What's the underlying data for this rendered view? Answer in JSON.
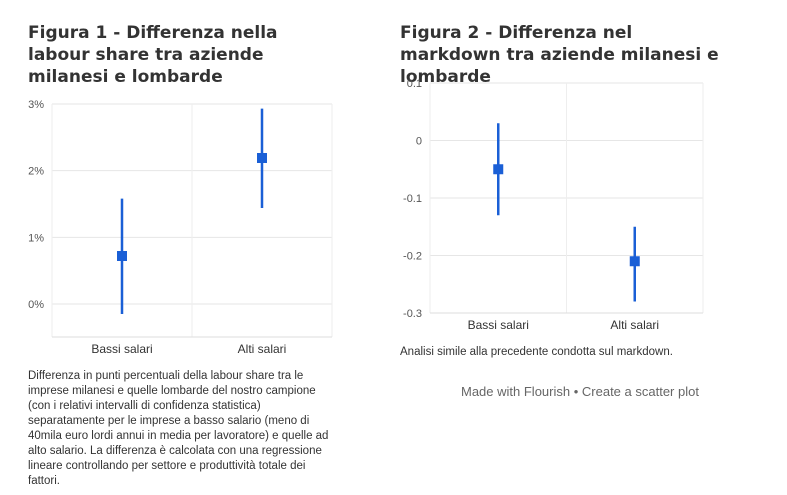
{
  "chart_data": [
    {
      "type": "scatter",
      "title": "Figura 1 - Differenza nella labour share tra aziende milanesi e lombarde",
      "categories": [
        "Bassi salari",
        "Alti salari"
      ],
      "values": [
        0.72,
        2.19
      ],
      "error_low": [
        -0.15,
        1.44
      ],
      "error_high": [
        1.58,
        2.93
      ],
      "yticks": [
        0,
        1,
        2,
        3
      ],
      "ytick_labels": [
        "0%",
        "1%",
        "2%",
        "3%"
      ],
      "ylim": [
        -0.5,
        3
      ],
      "grid": true,
      "color": "#1a5fd6",
      "caption": "Differenza in punti percentuali della labour share tra le imprese milanesi e quelle lombarde del nostro campione (con i relativi intervalli di confidenza statistica) separatamente per le imprese a basso salario (meno di 40mila euro lordi annui in media per lavoratore) e quelle ad alto salario. La differenza è calcolata con una regressione lineare controllando per settore e produttività totale dei fattori."
    },
    {
      "type": "scatter",
      "title": "Figura 2 - Differenza nel markdown tra aziende milanesi e lombarde",
      "categories": [
        "Bassi salari",
        "Alti salari"
      ],
      "values": [
        -0.05,
        -0.21
      ],
      "error_low": [
        -0.13,
        -0.28
      ],
      "error_high": [
        0.03,
        -0.15
      ],
      "yticks": [
        0.1,
        0,
        -0.1,
        -0.2,
        -0.3
      ],
      "ytick_labels": [
        "0.1",
        "0",
        "-0.1",
        "-0.2",
        "-0.3"
      ],
      "ylim": [
        -0.3,
        0.1
      ],
      "grid": true,
      "color": "#1a5fd6",
      "caption": "Analisi simile alla precedente condotta sul markdown."
    }
  ],
  "credit": {
    "made_with": "Made with Flourish",
    "separator": " • ",
    "create": "Create a scatter plot"
  }
}
